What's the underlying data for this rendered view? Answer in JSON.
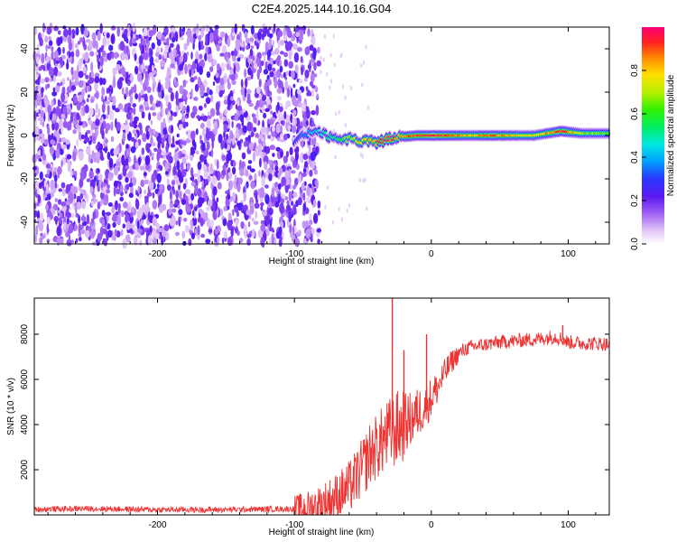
{
  "title": "C2E4.2025.144.10.16.G04",
  "chart_data": [
    {
      "type": "heatmap",
      "xlabel": "Height of straight line (km)",
      "ylabel": "Frequency (Hz)",
      "xlim": [
        -290,
        130
      ],
      "ylim": [
        -50,
        50
      ],
      "xticks": [
        -200,
        -100,
        0,
        100
      ],
      "yticks": [
        -40,
        -20,
        0,
        20,
        40
      ],
      "noise_region": {
        "x_from": -290,
        "x_to": -82
      },
      "signal_ridge": [
        {
          "x": -100,
          "y": -2.5,
          "amp": 0.3
        },
        {
          "x": -85,
          "y": 2.5,
          "amp": 0.45
        },
        {
          "x": -70,
          "y": -2,
          "amp": 0.55
        },
        {
          "x": -60,
          "y": -1.5,
          "amp": 0.7
        },
        {
          "x": -50,
          "y": -3,
          "amp": 0.85
        },
        {
          "x": -40,
          "y": -3,
          "amp": 0.9
        },
        {
          "x": -30,
          "y": -1.5,
          "amp": 0.95
        },
        {
          "x": -20,
          "y": -0.5,
          "amp": 0.85
        },
        {
          "x": -10,
          "y": 0,
          "amp": 0.95
        },
        {
          "x": 0,
          "y": 0,
          "amp": 1.0
        },
        {
          "x": 15,
          "y": 0,
          "amp": 0.92
        },
        {
          "x": 30,
          "y": 0,
          "amp": 0.85
        },
        {
          "x": 45,
          "y": 0,
          "amp": 0.92
        },
        {
          "x": 60,
          "y": 0,
          "amp": 0.8
        },
        {
          "x": 75,
          "y": 0,
          "amp": 0.78
        },
        {
          "x": 85,
          "y": 1,
          "amp": 0.85
        },
        {
          "x": 95,
          "y": 2,
          "amp": 0.98
        },
        {
          "x": 110,
          "y": 1,
          "amp": 0.7
        },
        {
          "x": 130,
          "y": 1,
          "amp": 0.65
        }
      ],
      "colorbar": {
        "label": "Normalized spectral amplitude",
        "ticks": [
          0.0,
          0.2,
          0.4,
          0.6,
          0.8
        ],
        "range": [
          0,
          1
        ]
      }
    },
    {
      "type": "line",
      "xlabel": "Height of straight line (km)",
      "ylabel": "SNR (10 * v/v)",
      "xlim": [
        -290,
        130
      ],
      "ylim": [
        0,
        9600
      ],
      "xticks": [
        -200,
        -100,
        0,
        100
      ],
      "yticks": [
        2000,
        4000,
        6000,
        8000
      ],
      "color": "#ee3333",
      "series": [
        {
          "x": [
            -290,
            -250,
            -200,
            -150,
            -100,
            -90,
            -80,
            -70,
            -60,
            -50,
            -45,
            -40,
            -35,
            -30,
            -25,
            -20,
            -15,
            -10,
            -5,
            0,
            5,
            10,
            15,
            20,
            25,
            30,
            40,
            50,
            60,
            70,
            80,
            90,
            95,
            100,
            110,
            120,
            130
          ],
          "y": [
            250,
            280,
            230,
            230,
            270,
            320,
            500,
            800,
            1200,
            2100,
            2700,
            3000,
            3300,
            3600,
            3800,
            4000,
            4200,
            4500,
            4800,
            5200,
            5700,
            6300,
            6800,
            7150,
            7350,
            7450,
            7550,
            7650,
            7700,
            7750,
            7800,
            7900,
            7800,
            7650,
            7600,
            7600,
            7550
          ]
        }
      ],
      "spikes": [
        {
          "x": -28.5,
          "y": 9600
        },
        {
          "x": -3.5,
          "y": 8000
        },
        {
          "x": -20,
          "y": 7300
        },
        {
          "x": 96,
          "y": 8400
        }
      ]
    }
  ]
}
